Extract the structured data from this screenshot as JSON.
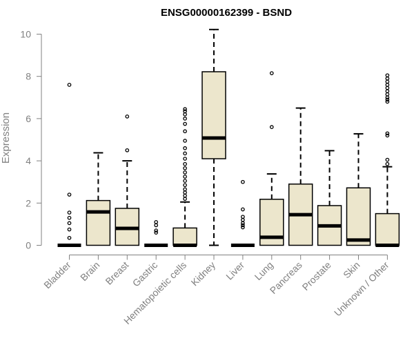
{
  "chart_data": {
    "type": "boxplot",
    "title": "ENSG00000162399 - BSND",
    "xlabel": "",
    "ylabel": "Expression",
    "ylim": [
      0,
      10
    ],
    "yticks": [
      0,
      2,
      4,
      6,
      8,
      10
    ],
    "grid": false,
    "legend": "none",
    "colors": {
      "box_fill": "#ece6cc",
      "box_stroke": "#000000",
      "axis": "#808080"
    },
    "categories": [
      "Bladder",
      "Brain",
      "Breast",
      "Gastric",
      "Hematopoietic cells",
      "Kidney",
      "Liver",
      "Lung",
      "Pancreas",
      "Prostate",
      "Skin",
      "Unknown / Other"
    ],
    "boxes": [
      {
        "category": "Bladder",
        "whisker_low": 0,
        "q1": 0,
        "median": 0,
        "q3": 0,
        "whisker_high": 0,
        "outliers": [
          7.6,
          2.4,
          1.55,
          1.3,
          1.05,
          0.75,
          0.35
        ]
      },
      {
        "category": "Brain",
        "whisker_low": 0,
        "q1": 0,
        "median": 1.58,
        "q3": 2.12,
        "whisker_high": 4.38,
        "outliers": []
      },
      {
        "category": "Breast",
        "whisker_low": 0,
        "q1": 0,
        "median": 0.8,
        "q3": 1.75,
        "whisker_high": 4.0,
        "outliers": [
          6.1,
          4.5
        ]
      },
      {
        "category": "Gastric",
        "whisker_low": 0,
        "q1": 0,
        "median": 0,
        "q3": 0,
        "whisker_high": 0,
        "outliers": [
          1.1,
          0.95,
          0.7,
          0.6
        ]
      },
      {
        "category": "Hematopoietic cells",
        "whisker_low": 0,
        "q1": 0,
        "median": 0,
        "q3": 0.82,
        "whisker_high": 2.05,
        "outliers": [
          6.45,
          6.35,
          6.2,
          6.0,
          5.75,
          5.4,
          4.95,
          4.6,
          4.35,
          4.1,
          3.85,
          3.65,
          3.45,
          3.25,
          3.05,
          2.85,
          2.65,
          2.5,
          2.35,
          2.2
        ]
      },
      {
        "category": "Kidney",
        "whisker_low": 0,
        "q1": 4.1,
        "median": 5.08,
        "q3": 8.22,
        "whisker_high": 10.22,
        "outliers": []
      },
      {
        "category": "Liver",
        "whisker_low": 0,
        "q1": 0,
        "median": 0,
        "q3": 0,
        "whisker_high": 0,
        "outliers": [
          3.0,
          1.7,
          1.35,
          1.2,
          1.05,
          0.95,
          0.85
        ]
      },
      {
        "category": "Lung",
        "whisker_low": 0,
        "q1": 0,
        "median": 0.38,
        "q3": 2.18,
        "whisker_high": 3.38,
        "outliers": [
          8.15,
          5.6
        ]
      },
      {
        "category": "Pancreas",
        "whisker_low": 0,
        "q1": 0,
        "median": 1.45,
        "q3": 2.9,
        "whisker_high": 6.5,
        "outliers": []
      },
      {
        "category": "Prostate",
        "whisker_low": 0,
        "q1": 0,
        "median": 0.92,
        "q3": 1.88,
        "whisker_high": 4.48,
        "outliers": []
      },
      {
        "category": "Skin",
        "whisker_low": 0,
        "q1": 0,
        "median": 0.25,
        "q3": 2.72,
        "whisker_high": 5.28,
        "outliers": []
      },
      {
        "category": "Unknown / Other",
        "whisker_low": 0,
        "q1": 0,
        "median": 0,
        "q3": 1.5,
        "whisker_high": 3.72,
        "outliers": [
          8.05,
          7.9,
          7.75,
          7.6,
          7.45,
          7.3,
          7.15,
          7.0,
          6.9,
          6.8,
          5.3,
          5.2,
          4.05,
          3.85
        ]
      }
    ]
  }
}
